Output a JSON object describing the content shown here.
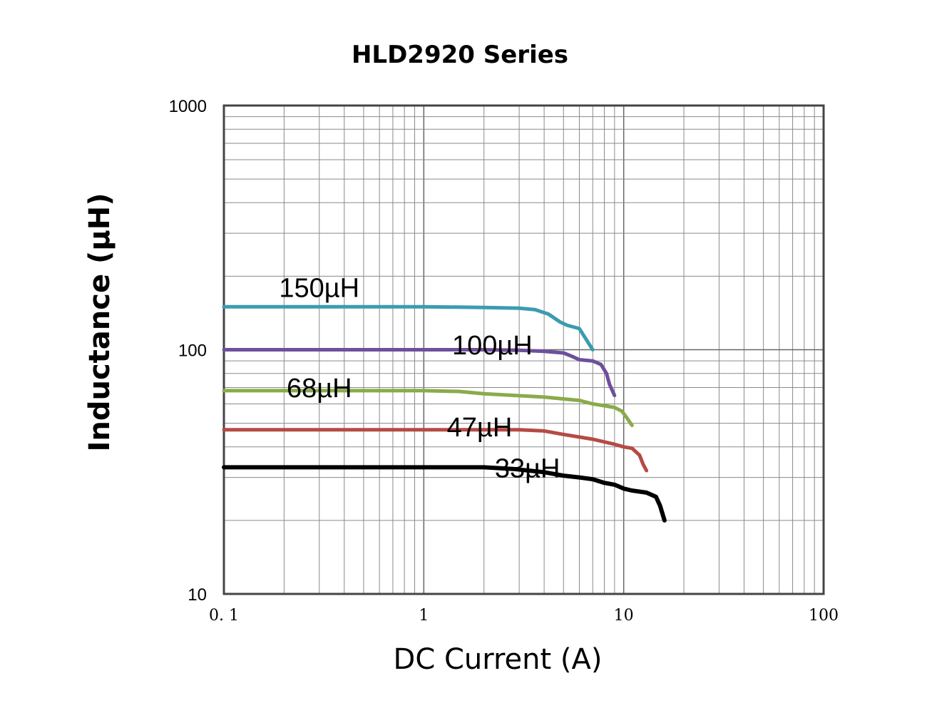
{
  "chart_data": {
    "type": "line",
    "title": "HLD2920 Series",
    "xlabel": "DC Current (A)",
    "ylabel": "Inductance (µH)",
    "x_scale": "log",
    "y_scale": "log",
    "xlim": [
      0.1,
      100
    ],
    "ylim": [
      10,
      1000
    ],
    "x_ticks": [
      "0. 1",
      "1",
      "10",
      "100"
    ],
    "y_ticks": [
      "10",
      "100",
      "1000"
    ],
    "grid": true,
    "series": [
      {
        "name": "150µH",
        "color": "#3b9cb0",
        "points": [
          [
            0.1,
            150
          ],
          [
            0.5,
            150
          ],
          [
            1,
            150
          ],
          [
            2,
            149
          ],
          [
            3,
            148
          ],
          [
            3.6,
            146
          ],
          [
            4.2,
            140
          ],
          [
            4.8,
            130
          ],
          [
            5.2,
            126
          ],
          [
            6,
            122
          ],
          [
            7,
            100
          ]
        ]
      },
      {
        "name": "100µH",
        "color": "#6e4f9c",
        "points": [
          [
            0.1,
            100
          ],
          [
            1,
            100
          ],
          [
            2,
            100
          ],
          [
            3,
            99.5
          ],
          [
            4,
            98.5
          ],
          [
            5,
            97
          ],
          [
            5.5,
            94
          ],
          [
            6,
            91
          ],
          [
            7,
            90
          ],
          [
            7.7,
            87
          ],
          [
            8.2,
            80
          ],
          [
            8.5,
            72
          ],
          [
            9,
            65
          ]
        ]
      },
      {
        "name": "68µH",
        "color": "#8aab4a",
        "points": [
          [
            0.1,
            68
          ],
          [
            1,
            68
          ],
          [
            1.5,
            67.5
          ],
          [
            2,
            66
          ],
          [
            4,
            64
          ],
          [
            6,
            62
          ],
          [
            7,
            60
          ],
          [
            8,
            59
          ],
          [
            9,
            58
          ],
          [
            9.8,
            56
          ],
          [
            10.3,
            53
          ],
          [
            11,
            49
          ]
        ]
      },
      {
        "name": "47µH",
        "color": "#b54a44",
        "points": [
          [
            0.1,
            47
          ],
          [
            1,
            47
          ],
          [
            2,
            47
          ],
          [
            3,
            47
          ],
          [
            4,
            46.5
          ],
          [
            5,
            45
          ],
          [
            7,
            43
          ],
          [
            9,
            41
          ],
          [
            10,
            40
          ],
          [
            11,
            39.5
          ],
          [
            12,
            37
          ],
          [
            12.5,
            34
          ],
          [
            13,
            32
          ]
        ]
      },
      {
        "name": "33µH",
        "color": "#000000",
        "points": [
          [
            0.1,
            33
          ],
          [
            1,
            33
          ],
          [
            2,
            33
          ],
          [
            2.8,
            32.5
          ],
          [
            4,
            31.5
          ],
          [
            5,
            30.5
          ],
          [
            6,
            30
          ],
          [
            7,
            29.5
          ],
          [
            8,
            28.5
          ],
          [
            9,
            28
          ],
          [
            10,
            27
          ],
          [
            11,
            26.5
          ],
          [
            13,
            26
          ],
          [
            14.5,
            25
          ],
          [
            15.2,
            23
          ],
          [
            16,
            20
          ]
        ]
      }
    ]
  }
}
